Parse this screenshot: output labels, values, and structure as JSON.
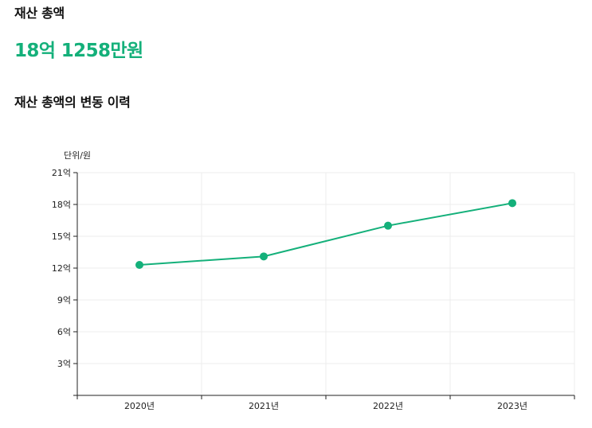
{
  "summary": {
    "label": "재산 총액",
    "value": "18억 1258만원"
  },
  "history": {
    "title": "재산 총액의 변동 이력"
  },
  "colors": {
    "accent": "#14b07a",
    "grid": "#ececec",
    "axis": "#222222"
  },
  "chart_data": {
    "type": "line",
    "title": "재산 총액의 변동 이력",
    "unit_label": "단위/원",
    "categories": [
      "2020년",
      "2021년",
      "2022년",
      "2023년"
    ],
    "series": [
      {
        "values": [
          12.3,
          13.1,
          16.0,
          18.1258
        ]
      }
    ],
    "ylim": [
      0,
      21
    ],
    "yticks": [
      {
        "value": 3,
        "label": "3억"
      },
      {
        "value": 6,
        "label": "6억"
      },
      {
        "value": 9,
        "label": "9억"
      },
      {
        "value": 12,
        "label": "12억"
      },
      {
        "value": 15,
        "label": "15억"
      },
      {
        "value": 18,
        "label": "18억"
      },
      {
        "value": 21,
        "label": "21억"
      }
    ],
    "grid": true,
    "legend": "none"
  }
}
